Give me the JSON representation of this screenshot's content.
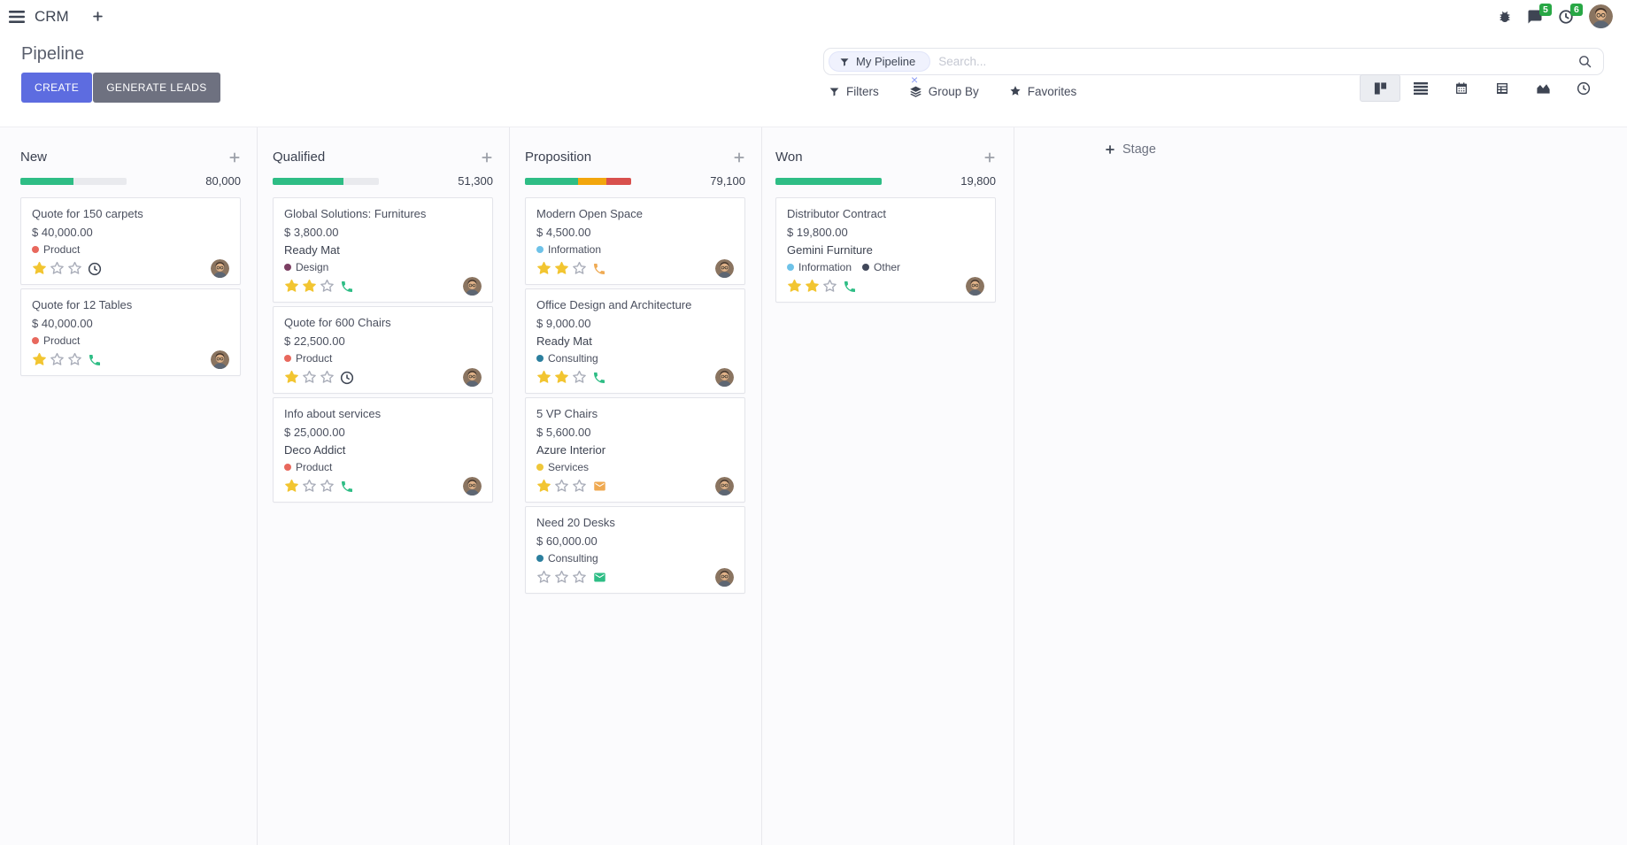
{
  "navbar": {
    "app_name": "CRM",
    "messages_badge": "5",
    "activities_badge": "6"
  },
  "control_panel": {
    "title": "Pipeline",
    "create_label": "CREATE",
    "generate_leads_label": "GENERATE LEADS",
    "search": {
      "facet": "My Pipeline",
      "placeholder": "Search...",
      "remove_facet_glyph": "×"
    },
    "filters_label": "Filters",
    "group_by_label": "Group By",
    "favorites_label": "Favorites",
    "view_switcher": {
      "active": "kanban",
      "views": [
        "kanban",
        "list",
        "calendar",
        "pivot",
        "graph",
        "activity"
      ]
    }
  },
  "colors": {
    "primary": "#5d6ce0",
    "secondary_button": "#6e7180",
    "badge_green": "#28a745",
    "progress_green": "#2ebd85",
    "progress_orange": "#f2a60d",
    "progress_red": "#d8504d",
    "star_gold": "#f2c531",
    "star_empty": "#a8acb8",
    "icon_dark": "#3e4553"
  },
  "kanban": {
    "add_stage_label": "Stage",
    "columns": [
      {
        "name": "New",
        "total": "80,000",
        "progress": [
          {
            "color": "#2ebd85",
            "pct": 50
          }
        ],
        "cards": [
          {
            "title": "Quote for 150 carpets",
            "amount": "$ 40,000.00",
            "partner": "",
            "tags": [
              {
                "label": "Product",
                "color": "#e8685d"
              }
            ],
            "stars": 1,
            "activity": {
              "type": "clock",
              "color": "#3e4553"
            }
          },
          {
            "title": "Quote for 12 Tables",
            "amount": "$ 40,000.00",
            "partner": "",
            "tags": [
              {
                "label": "Product",
                "color": "#e8685d"
              }
            ],
            "stars": 1,
            "activity": {
              "type": "phone",
              "color": "#2ebd85"
            }
          }
        ]
      },
      {
        "name": "Qualified",
        "total": "51,300",
        "progress": [
          {
            "color": "#2ebd85",
            "pct": 67
          }
        ],
        "cards": [
          {
            "title": "Global Solutions: Furnitures",
            "amount": "$ 3,800.00",
            "partner": "Ready Mat",
            "tags": [
              {
                "label": "Design",
                "color": "#7c3f63"
              }
            ],
            "stars": 2,
            "activity": {
              "type": "phone",
              "color": "#2ebd85"
            }
          },
          {
            "title": "Quote for 600 Chairs",
            "amount": "$ 22,500.00",
            "partner": "",
            "tags": [
              {
                "label": "Product",
                "color": "#e8685d"
              }
            ],
            "stars": 1,
            "activity": {
              "type": "clock",
              "color": "#3e4553"
            }
          },
          {
            "title": "Info about services",
            "amount": "$ 25,000.00",
            "partner": "Deco Addict",
            "tags": [
              {
                "label": "Product",
                "color": "#e8685d"
              }
            ],
            "stars": 1,
            "activity": {
              "type": "phone",
              "color": "#2ebd85"
            }
          }
        ]
      },
      {
        "name": "Proposition",
        "total": "79,100",
        "progress": [
          {
            "color": "#2ebd85",
            "pct": 50
          },
          {
            "color": "#f2a60d",
            "pct": 27
          },
          {
            "color": "#d8504d",
            "pct": 23
          }
        ],
        "cards": [
          {
            "title": "Modern Open Space",
            "amount": "$ 4,500.00",
            "partner": "",
            "tags": [
              {
                "label": "Information",
                "color": "#6ec2e8"
              }
            ],
            "stars": 2,
            "activity": {
              "type": "phone",
              "color": "#efab55"
            }
          },
          {
            "title": "Office Design and Architecture",
            "amount": "$ 9,000.00",
            "partner": "Ready Mat",
            "tags": [
              {
                "label": "Consulting",
                "color": "#2c7f9e"
              }
            ],
            "stars": 2,
            "activity": {
              "type": "phone",
              "color": "#2ebd85"
            }
          },
          {
            "title": "5 VP Chairs",
            "amount": "$ 5,600.00",
            "partner": "Azure Interior",
            "tags": [
              {
                "label": "Services",
                "color": "#efc73a"
              }
            ],
            "stars": 1,
            "activity": {
              "type": "envelope",
              "color": "#efa951"
            }
          },
          {
            "title": "Need 20 Desks",
            "amount": "$ 60,000.00",
            "partner": "",
            "tags": [
              {
                "label": "Consulting",
                "color": "#2c7f9e"
              }
            ],
            "stars": 0,
            "activity": {
              "type": "envelope",
              "color": "#2ebd85"
            }
          }
        ]
      },
      {
        "name": "Won",
        "total": "19,800",
        "progress": [
          {
            "color": "#2ebd85",
            "pct": 100
          }
        ],
        "cards": [
          {
            "title": "Distributor Contract",
            "amount": "$ 19,800.00",
            "partner": "Gemini Furniture",
            "tags": [
              {
                "label": "Information",
                "color": "#6ec2e8"
              },
              {
                "label": "Other",
                "color": "#41485a"
              }
            ],
            "stars": 2,
            "activity": {
              "type": "phone",
              "color": "#2ebd85"
            }
          }
        ]
      }
    ]
  }
}
